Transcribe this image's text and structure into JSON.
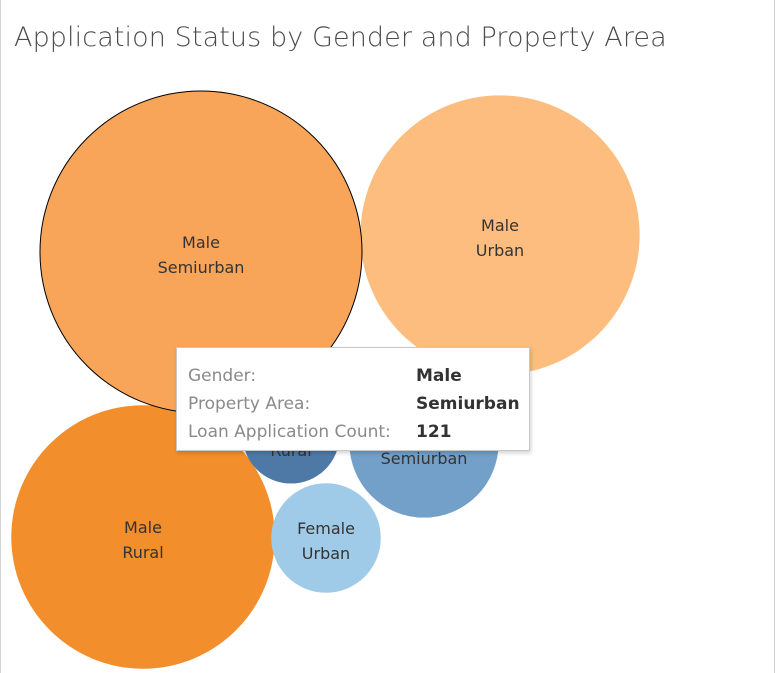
{
  "chart_data": {
    "type": "packed-bubble",
    "title": "Application Status by Gender and Property Area",
    "size_measure": "Loan Application Count",
    "bubbles": [
      {
        "gender": "Male",
        "area": "Semiurban",
        "count": 121,
        "color": "#f8a55a",
        "highlighted": true
      },
      {
        "gender": "Male",
        "area": "Urban",
        "count": 91,
        "color": "#fdbd7e"
      },
      {
        "gender": "Male",
        "area": "Rural",
        "count": 81,
        "color": "#f28e2b"
      },
      {
        "gender": "Female",
        "area": "Semiurban",
        "count": 26,
        "color": "#73a0c8"
      },
      {
        "gender": "Female",
        "area": "Rural",
        "count": 11,
        "color": "#4e79a7"
      },
      {
        "gender": "Female",
        "area": "Urban",
        "count": 14,
        "color": "#a0cbe8"
      }
    ]
  },
  "tooltip": {
    "rows": [
      {
        "label": "Gender:",
        "value": "Male"
      },
      {
        "label": "Property Area:",
        "value": "Semiurban"
      },
      {
        "label": "Loan Application Count:",
        "value": "121"
      }
    ]
  }
}
